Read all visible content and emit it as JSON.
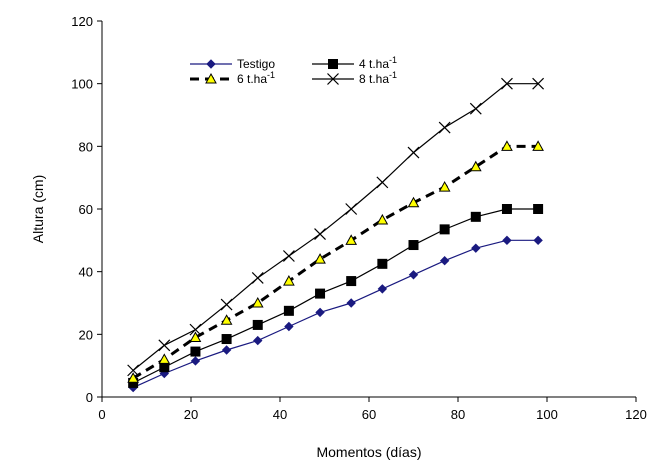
{
  "chart_data": {
    "type": "line",
    "title": "",
    "xlabel": "Momentos (días)",
    "ylabel": "Altura (cm)",
    "xlim": [
      0,
      120
    ],
    "ylim": [
      0,
      120
    ],
    "xticks": [
      0,
      20,
      40,
      60,
      80,
      100,
      120
    ],
    "yticks": [
      0,
      20,
      40,
      60,
      80,
      100,
      120
    ],
    "grid": false,
    "legend_position": "top-left",
    "series": [
      {
        "name": "Testigo",
        "marker": "diamond",
        "color": "#1a1a80",
        "line_style": "solid",
        "x": [
          7,
          14,
          21,
          28,
          35,
          42,
          49,
          56,
          63,
          70,
          77,
          84,
          91,
          98
        ],
        "y": [
          3,
          7.5,
          11.5,
          15,
          18,
          22.5,
          27,
          30,
          34.5,
          39,
          43.5,
          47.5,
          50,
          50
        ]
      },
      {
        "name": "4 t.ha-1",
        "legend_base": "4 t.ha",
        "legend_sup": "-1",
        "marker": "square",
        "color": "#000000",
        "line_style": "solid",
        "x": [
          7,
          14,
          21,
          28,
          35,
          42,
          49,
          56,
          63,
          70,
          77,
          84,
          91,
          98
        ],
        "y": [
          4.5,
          9.5,
          14.5,
          18.5,
          23,
          27.5,
          33,
          37,
          42.5,
          48.5,
          53.5,
          57.5,
          60,
          60
        ]
      },
      {
        "name": "6 t.ha-1",
        "legend_base": "6 t.ha",
        "legend_sup": "-1",
        "marker": "triangle",
        "color": "#000000",
        "marker_fill": "#ffff00",
        "line_style": "dashed",
        "x": [
          7,
          14,
          21,
          28,
          35,
          42,
          49,
          56,
          63,
          70,
          77,
          84,
          91,
          98
        ],
        "y": [
          6,
          12,
          19,
          24.5,
          30,
          37,
          44,
          50,
          56.5,
          62,
          67,
          73.5,
          80,
          80
        ]
      },
      {
        "name": "8 t.ha-1",
        "legend_base": "8 t.ha",
        "legend_sup": "-1",
        "marker": "x",
        "color": "#000000",
        "line_style": "solid",
        "x": [
          7,
          14,
          21,
          28,
          35,
          42,
          49,
          56,
          63,
          70,
          77,
          84,
          91,
          98
        ],
        "y": [
          8.5,
          16.5,
          21.5,
          29.5,
          38,
          45,
          52,
          60,
          68.5,
          78,
          86,
          92,
          100,
          100
        ]
      }
    ]
  }
}
